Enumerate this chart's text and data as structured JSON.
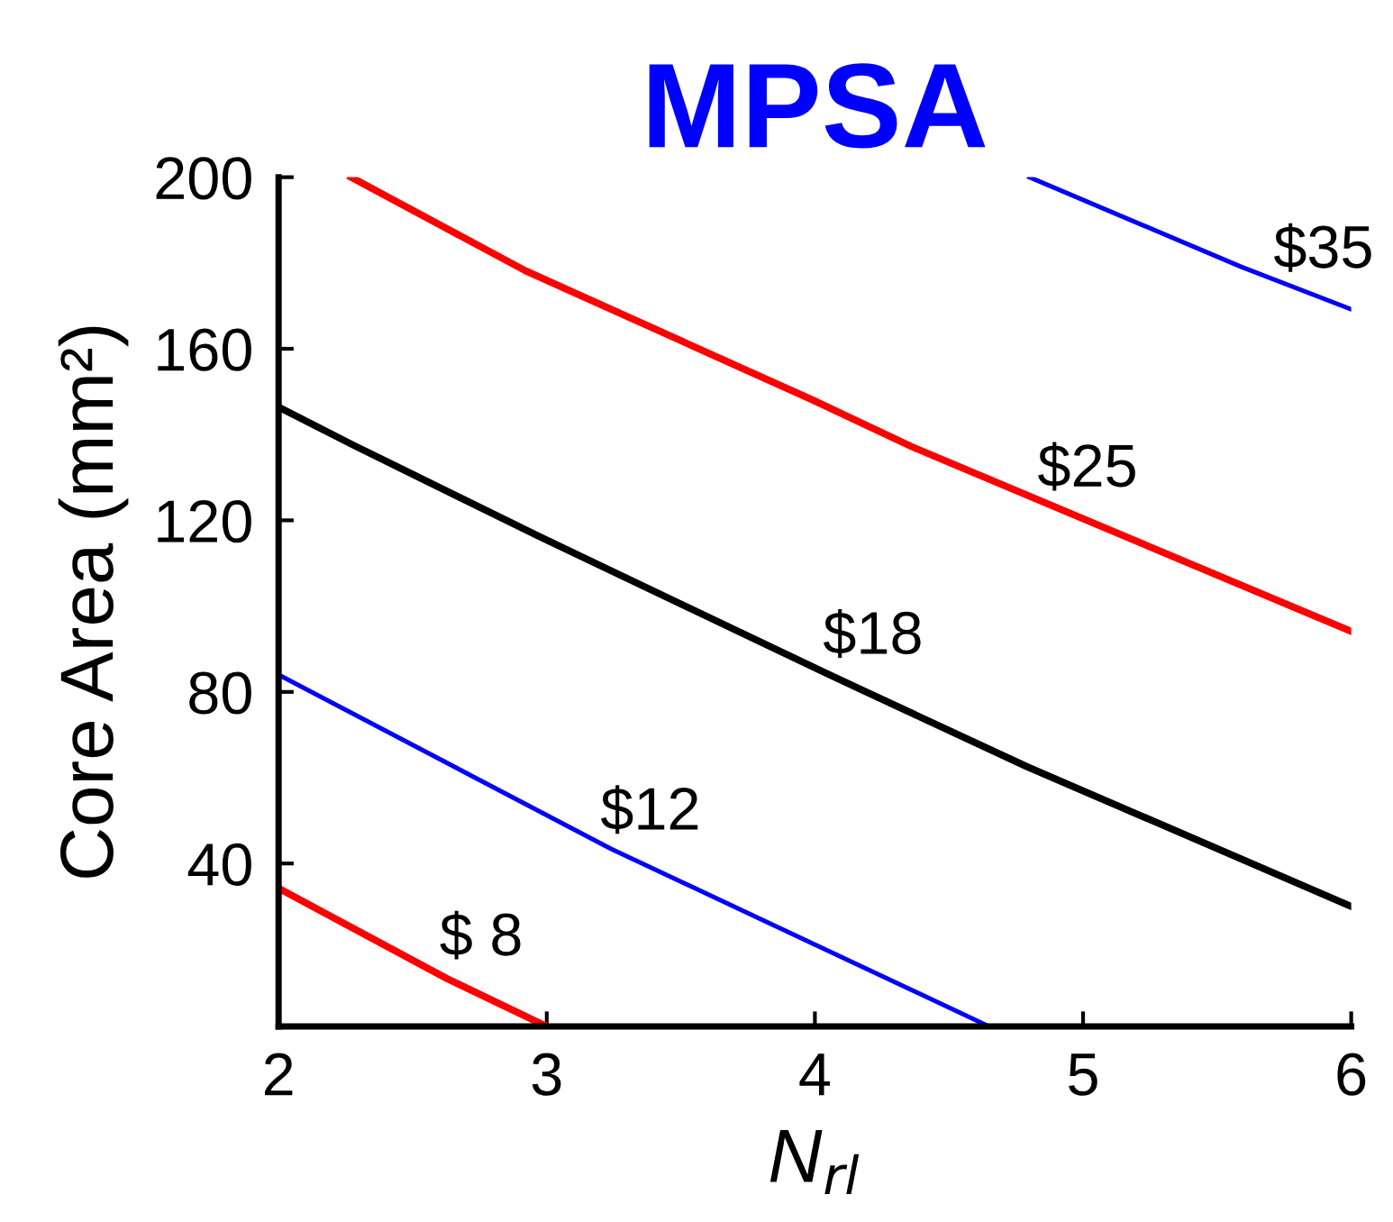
{
  "chart_data": {
    "type": "line",
    "title": "MPSA",
    "xlabel": "N$_{rl}$",
    "ylabel": "Core Area (mm²)",
    "xlim": [
      2,
      6
    ],
    "ylim": [
      2,
      200
    ],
    "xticks": [
      2,
      3,
      4,
      5,
      6
    ],
    "yticks": [
      40,
      80,
      120,
      160,
      200
    ],
    "grid": false,
    "marker": "none",
    "line_style": "solid",
    "series": [
      {
        "color": "#ff0000",
        "x": [
          2,
          2.63,
          2.99
        ],
        "values": [
          34.2,
          13.1,
          2.3
        ]
      },
      {
        "color": "#0000ff",
        "x": [
          2,
          3.24,
          4.64
        ],
        "values": [
          84,
          43.4,
          2.3
        ]
      },
      {
        "color": "#000000",
        "x": [
          2,
          2.28,
          2.97,
          4.04,
          4.79,
          6
        ],
        "values": [
          146.4,
          137.5,
          116.3,
          84.4,
          62.6,
          30
        ]
      },
      {
        "color": "#ff0000",
        "x": [
          2.27,
          2.92,
          3.99,
          4.36,
          6
        ],
        "values": [
          200,
          178.2,
          148.1,
          137.2,
          94.1
        ]
      },
      {
        "color": "#0000ff",
        "x": [
          4.8,
          5.59,
          6
        ],
        "values": [
          200,
          179.1,
          169.2
        ]
      }
    ],
    "annotations": [
      {
        "text": "$ 8",
        "x": 2.6,
        "y": 15.7
      },
      {
        "text": "$12",
        "x": 3.2,
        "y": 45
      },
      {
        "text": "$18",
        "x": 4.03,
        "y": 86
      },
      {
        "text": "$25",
        "x": 4.83,
        "y": 125
      },
      {
        "text": "$35",
        "x": 5.71,
        "y": 176
      }
    ]
  }
}
